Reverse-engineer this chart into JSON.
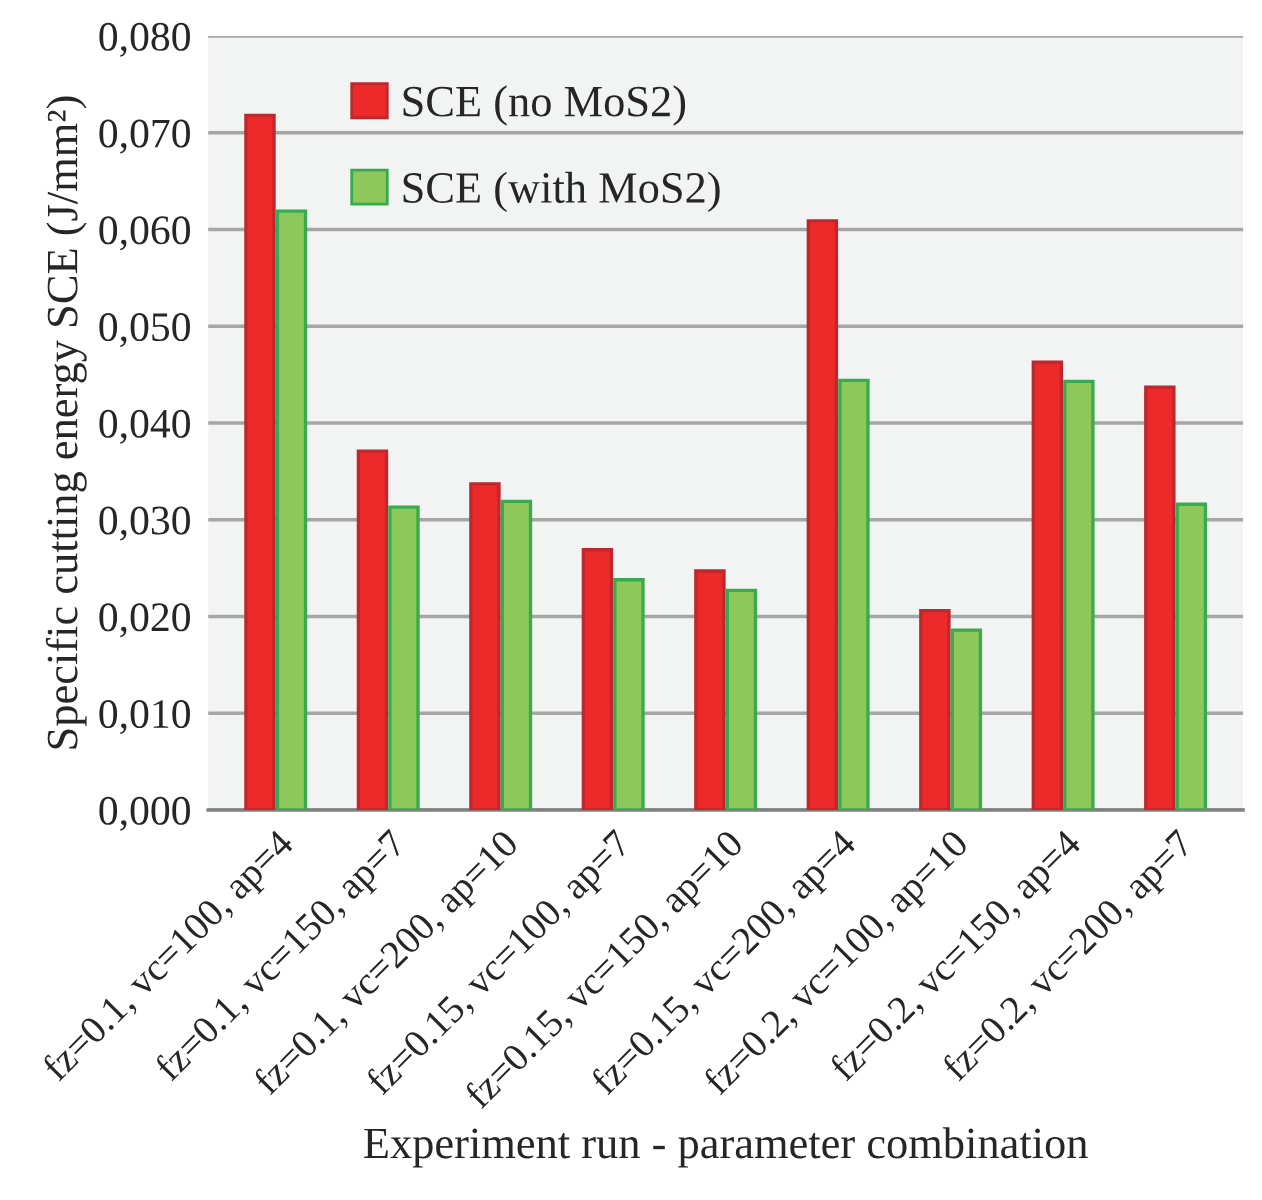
{
  "chart_data": {
    "type": "bar",
    "xlabel": "Experiment run - parameter combination",
    "ylabel": "Specific cutting energy SCE (J/mm²)",
    "categories": [
      "fz=0.1, vc=100, ap=4",
      "fz=0.1, vc=150, ap=7",
      "fz=0.1, vc=200, ap=10",
      "fz=0.15, vc=100, ap=7",
      "fz=0.15, vc=150, ap=10",
      "fz=0.15, vc=200, ap=4",
      "fz=0.2, vc=100, ap=10",
      "fz=0.2, vc=150, ap=4",
      "fz=0.2, vc=200, ap=7"
    ],
    "series": [
      {
        "name": "SCE (no MoS2)",
        "color": "#ed2a2a",
        "values": [
          0.0718,
          0.0371,
          0.0337,
          0.0269,
          0.0247,
          0.0609,
          0.0206,
          0.0463,
          0.0437
        ]
      },
      {
        "name": "SCE (with MoS2)",
        "color": "#8fc85a",
        "values": [
          0.0619,
          0.0313,
          0.0319,
          0.0238,
          0.0227,
          0.0444,
          0.0186,
          0.0443,
          0.0316
        ]
      }
    ],
    "ylim": [
      0,
      0.08
    ],
    "yticks": [
      {
        "value": 0,
        "label": "0,000"
      },
      {
        "value": 0.01,
        "label": "0,010"
      },
      {
        "value": 0.02,
        "label": "0,020"
      },
      {
        "value": 0.03,
        "label": "0,030"
      },
      {
        "value": 0.04,
        "label": "0,040"
      },
      {
        "value": 0.05,
        "label": "0,050"
      },
      {
        "value": 0.06,
        "label": "0,060"
      },
      {
        "value": 0.07,
        "label": "0,070"
      },
      {
        "value": 0.08,
        "label": "0,080"
      }
    ],
    "grid": "y",
    "legend": "top left"
  }
}
